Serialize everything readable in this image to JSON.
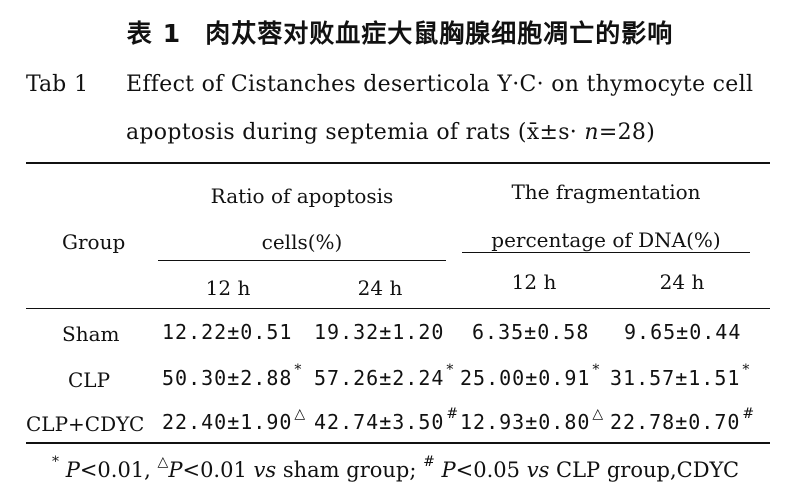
{
  "caption": {
    "cn_label": "表",
    "cn_number": "1",
    "cn_title": "肉苁蓉对败血症大鼠胸腺细胞凋亡的影响",
    "tab_label": "Tab",
    "tab_number": "1",
    "en_line1": "Effect of Cistanches deserticola Y·C· on thymocyte cell",
    "en_line2_prefix": "apoptosis during septemia of rats (",
    "en_line2_stat": "x̄±s",
    "en_line2_n_sep": "· ",
    "en_line2_n": "n",
    "en_line2_n_value": "=28)"
  },
  "table": {
    "group_header": "Group",
    "col_group1_line1": "Ratio of apoptosis",
    "col_group1_line2": "cells(%)",
    "col_group2_line1": "The fragmentation",
    "col_group2_line2": "percentage of DNA(%)",
    "sub_headers": [
      "12 h",
      "24 h",
      "12 h",
      "24 h"
    ],
    "rows": [
      {
        "group": "Sham",
        "values": [
          "12.22±0.51",
          "19.32±1.20",
          "6.35±0.58",
          "9.65±0.44"
        ],
        "marks": [
          "",
          "",
          "",
          ""
        ]
      },
      {
        "group": "CLP",
        "values": [
          "50.30±2.88",
          "57.26±2.24",
          "25.00±0.91",
          "31.57±1.51"
        ],
        "marks": [
          "*",
          "*",
          "*",
          "*"
        ]
      },
      {
        "group": "CLP+CDYC",
        "values": [
          "22.40±1.90",
          "42.74±3.50",
          "12.93±0.80",
          "22.78±0.70"
        ],
        "marks": [
          "△",
          "#",
          "△",
          "#"
        ]
      }
    ]
  },
  "footnote": {
    "mark1": "*",
    "p1": "P",
    "p1_value": "<0.01,",
    "mark2": "△",
    "p2": "P",
    "p2_value": "<0.01",
    "vs1": "vs",
    "text1": "sham group;",
    "mark3": "#",
    "p3": "P",
    "p3_value": "<0.05",
    "vs2": "vs",
    "text2": "CLP group,CDYC"
  }
}
